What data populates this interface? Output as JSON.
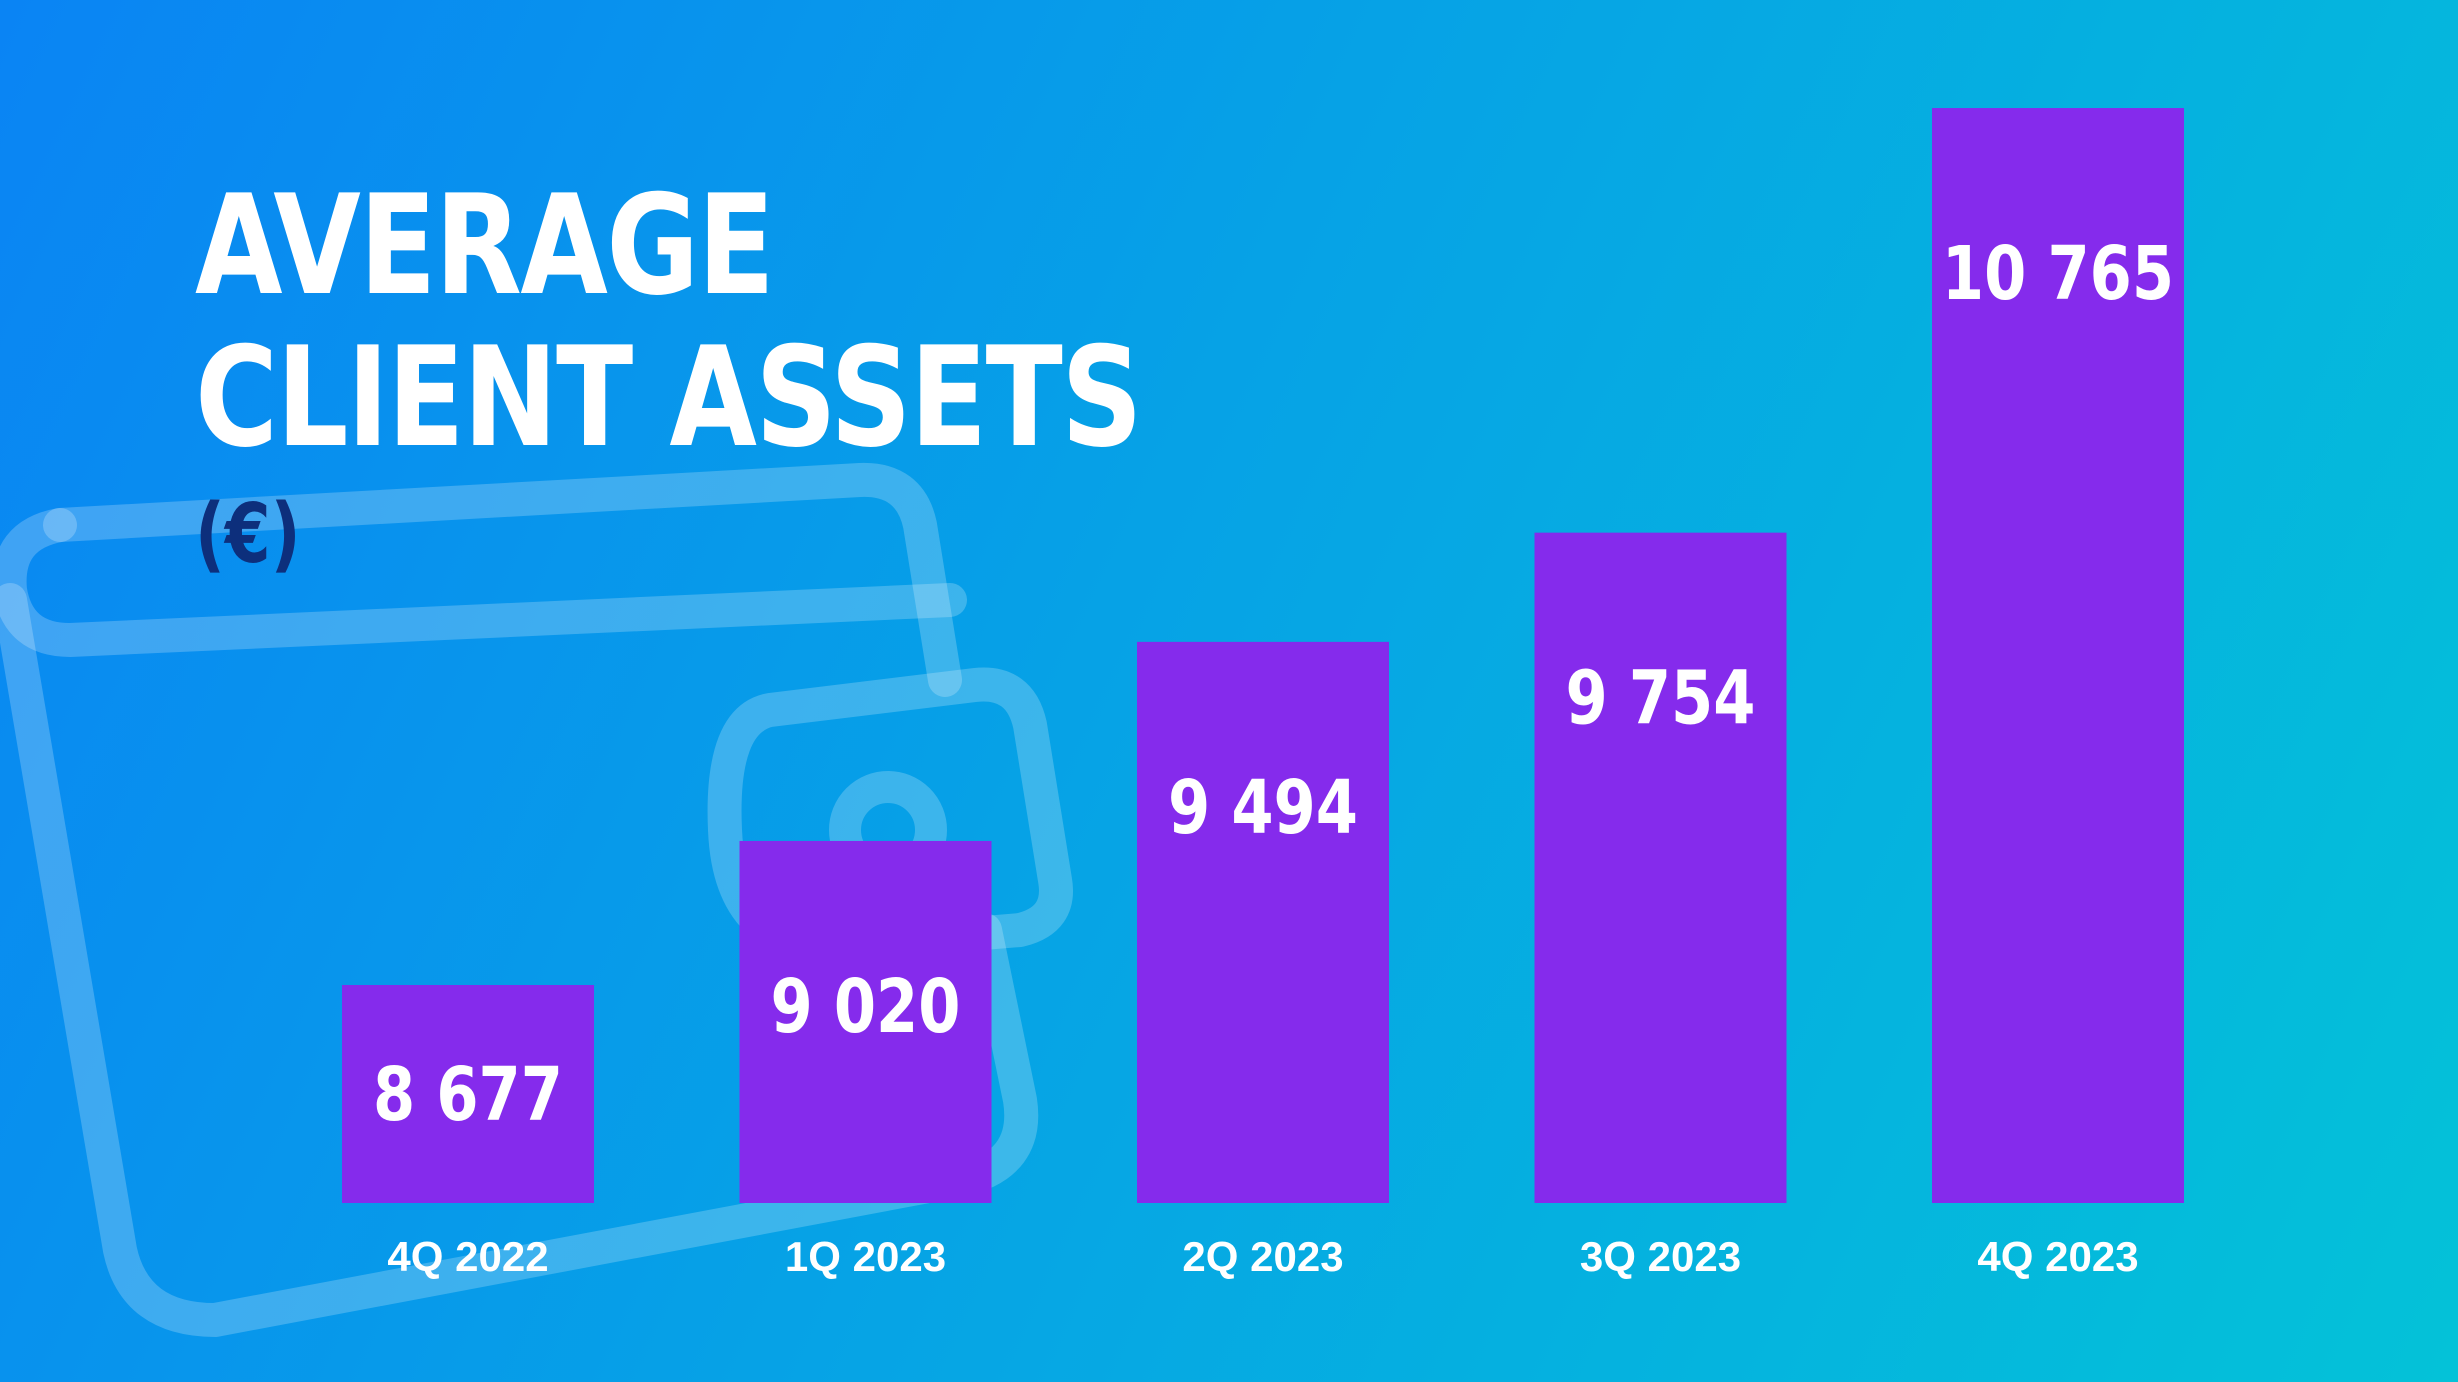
{
  "title_lines": [
    "AVERAGE",
    "CLIENT ASSETS"
  ],
  "unit": "(€)",
  "colors": {
    "bar": "#852bec",
    "bar_label": "#ffffff",
    "unit": "#0d2f7c"
  },
  "background_icon": "wallet-icon",
  "chart_data": {
    "type": "bar",
    "title": "AVERAGE CLIENT ASSETS",
    "unit": "€",
    "categories": [
      "4Q 2022",
      "1Q 2023",
      "2Q 2023",
      "3Q 2023",
      "4Q 2023"
    ],
    "values": [
      8677,
      9020,
      9494,
      9754,
      10765
    ],
    "value_labels": [
      "8 677",
      "9 020",
      "9 494",
      "9 754",
      "10 765"
    ],
    "xlabel": "",
    "ylabel": "",
    "grid": false,
    "legend": "none"
  }
}
